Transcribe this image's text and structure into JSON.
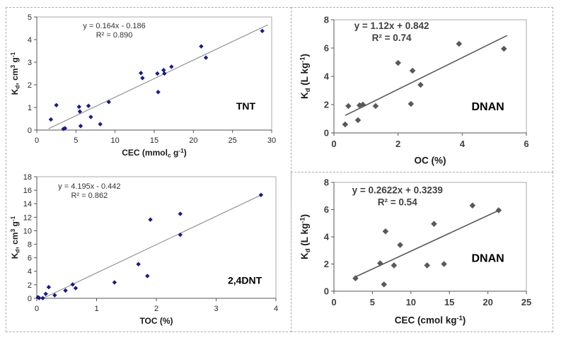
{
  "figure": {
    "background_color": "#ffffff",
    "panel_border_color": "#aeaeae",
    "panel_border_style": "dashed",
    "panels": [
      {
        "id": "left-panel",
        "contains": [
          "tnt-cec",
          "dnt-toc"
        ]
      },
      {
        "id": "top-right-panel",
        "contains": [
          "dnan-oc"
        ]
      },
      {
        "id": "bottom-right-panel",
        "contains": [
          "dnan-cec"
        ]
      }
    ]
  },
  "chart_data": [
    {
      "id": "tnt-cec",
      "type": "scatter",
      "compound_label": "TNT",
      "equation_line1": "y = 0.164x - 0.186",
      "equation_line2": "R² = 0.890",
      "xlabel": "CEC (mmol_{c} g^{-1})",
      "ylabel": "K_{d}, cm^{3} g^{-1}",
      "xlim": [
        0,
        30
      ],
      "ylim": [
        0,
        5
      ],
      "xticks": [
        0,
        5,
        10,
        15,
        20,
        25,
        30
      ],
      "yticks": [
        0,
        1,
        2,
        3,
        4,
        5
      ],
      "grid": false,
      "legend": null,
      "points": [
        [
          1.8,
          0.47
        ],
        [
          2.5,
          1.1
        ],
        [
          3.4,
          0.05
        ],
        [
          3.6,
          0.08
        ],
        [
          5.4,
          1.03
        ],
        [
          5.5,
          0.82
        ],
        [
          5.6,
          0.18
        ],
        [
          6.6,
          1.07
        ],
        [
          6.9,
          0.58
        ],
        [
          8.1,
          0.26
        ],
        [
          9.2,
          1.24
        ],
        [
          13.3,
          2.52
        ],
        [
          13.5,
          2.3
        ],
        [
          15.4,
          2.5
        ],
        [
          15.5,
          1.68
        ],
        [
          16.2,
          2.65
        ],
        [
          16.3,
          2.5
        ],
        [
          17.2,
          2.8
        ],
        [
          21.0,
          3.7
        ],
        [
          21.6,
          3.2
        ],
        [
          28.8,
          4.38
        ]
      ],
      "trendline": {
        "slope": 0.164,
        "intercept": -0.186,
        "x_start": 1.5,
        "x_end": 29.5
      },
      "marker_color": "#191991",
      "line_color": "#8a8a8a",
      "text_color": "#262626",
      "eq_color": "#333333",
      "bold": false,
      "marker_size": 3.2,
      "eq_pos": [
        0.33,
        0.1
      ],
      "label_pos": [
        0.89,
        0.82
      ]
    },
    {
      "id": "dnt-toc",
      "type": "scatter",
      "compound_label": "2,4DNT",
      "equation_line1": "y = 4.195x - 0.442",
      "equation_line2": "R² = 0.862",
      "xlabel": "TOC (%)",
      "ylabel": "K_{d}, cm^{3} g^{-1}",
      "xlim": [
        0,
        4
      ],
      "ylim": [
        0,
        18
      ],
      "xticks": [
        0,
        1,
        2,
        3,
        4
      ],
      "yticks": [
        0,
        2,
        4,
        6,
        8,
        10,
        12,
        14,
        16,
        18
      ],
      "grid": false,
      "legend": null,
      "points": [
        [
          0.02,
          0.15
        ],
        [
          0.04,
          0.05
        ],
        [
          0.1,
          0.02
        ],
        [
          0.15,
          0.65
        ],
        [
          0.2,
          1.65
        ],
        [
          0.3,
          0.45
        ],
        [
          0.48,
          1.15
        ],
        [
          0.6,
          2.05
        ],
        [
          0.65,
          1.5
        ],
        [
          1.3,
          2.35
        ],
        [
          1.7,
          5.05
        ],
        [
          1.85,
          3.3
        ],
        [
          1.9,
          11.65
        ],
        [
          2.4,
          12.5
        ],
        [
          2.4,
          9.4
        ],
        [
          3.75,
          15.3
        ]
      ],
      "trendline": {
        "slope": 4.195,
        "intercept": -0.442,
        "x_start": 0.11,
        "x_end": 3.78
      },
      "marker_color": "#191991",
      "line_color": "#8a8a8a",
      "text_color": "#262626",
      "eq_color": "#333333",
      "bold": false,
      "marker_size": 3.2,
      "eq_pos": [
        0.22,
        0.1
      ],
      "label_pos": [
        0.87,
        0.88
      ]
    },
    {
      "id": "dnan-oc",
      "type": "scatter",
      "compound_label": "DNAN",
      "equation_line1": "y = 1.12x + 0.842",
      "equation_line2": "R² = 0.74",
      "xlabel": "OC (%)",
      "ylabel": "K_{d} (L kg^{-1})",
      "xlim": [
        0,
        6
      ],
      "ylim": [
        0,
        8
      ],
      "xticks": [
        0,
        2,
        4,
        6
      ],
      "yticks": [
        0,
        2,
        4,
        6,
        8
      ],
      "grid": false,
      "legend": null,
      "points": [
        [
          0.35,
          0.6
        ],
        [
          0.45,
          1.9
        ],
        [
          0.75,
          0.9
        ],
        [
          0.8,
          1.95
        ],
        [
          0.9,
          2.0
        ],
        [
          1.3,
          1.9
        ],
        [
          2.0,
          4.95
        ],
        [
          2.4,
          2.05
        ],
        [
          2.45,
          4.4
        ],
        [
          2.7,
          3.4
        ],
        [
          3.9,
          6.3
        ],
        [
          5.3,
          5.95
        ]
      ],
      "trendline": {
        "slope": 1.12,
        "intercept": 0.842,
        "x_start": 0.35,
        "x_end": 5.4
      },
      "marker_color": "#595959",
      "line_color": "#595959",
      "text_color": "#404040",
      "eq_color": "#3f3f3f",
      "bold": true,
      "marker_size": 4.3,
      "eq_pos": [
        0.3,
        0.08
      ],
      "label_pos": [
        0.8,
        0.8
      ]
    },
    {
      "id": "dnan-cec",
      "type": "scatter",
      "compound_label": "DNAN",
      "equation_line1": "y = 0.2622x + 0.3239",
      "equation_line2": "R² = 0.54",
      "xlabel": "CEC (cmol kg^{-1})",
      "ylabel": "K_{d} (L kg^{-1})",
      "xlim": [
        0,
        25
      ],
      "ylim": [
        0,
        8
      ],
      "xticks": [
        0,
        5,
        10,
        15,
        20,
        25
      ],
      "yticks": [
        0,
        2,
        4,
        6,
        8
      ],
      "grid": false,
      "legend": null,
      "points": [
        [
          2.8,
          0.95
        ],
        [
          6.0,
          2.05
        ],
        [
          6.5,
          0.5
        ],
        [
          6.7,
          4.4
        ],
        [
          7.8,
          1.9
        ],
        [
          8.6,
          3.4
        ],
        [
          12.1,
          1.9
        ],
        [
          13.0,
          4.95
        ],
        [
          14.3,
          2.0
        ],
        [
          18.0,
          6.3
        ],
        [
          21.4,
          5.95
        ]
      ],
      "trendline": {
        "slope": 0.2622,
        "intercept": 0.3239,
        "x_start": 2.8,
        "x_end": 21.4
      },
      "marker_color": "#595959",
      "line_color": "#595959",
      "text_color": "#404040",
      "eq_color": "#3f3f3f",
      "bold": true,
      "marker_size": 4.3,
      "eq_pos": [
        0.33,
        0.1
      ],
      "label_pos": [
        0.8,
        0.73
      ]
    }
  ]
}
